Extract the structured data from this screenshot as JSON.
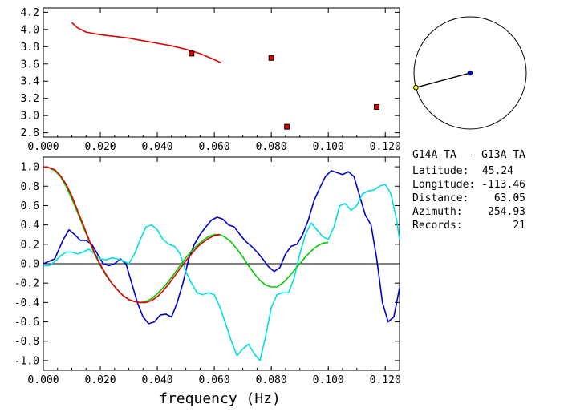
{
  "chart_data": [
    {
      "type": "scatter",
      "xlim": [
        0.0,
        0.125
      ],
      "ylim": [
        2.75,
        4.25
      ],
      "xticks": [
        0.0,
        0.02,
        0.04,
        0.06,
        0.08,
        0.1,
        0.12
      ],
      "xtick_labels": [
        "0.000",
        "0.020",
        "0.040",
        "0.060",
        "0.080",
        "0.100",
        "0.120"
      ],
      "yticks": [
        2.8,
        3.0,
        3.2,
        3.4,
        3.6,
        3.8,
        4.0,
        4.2
      ],
      "ytick_labels": [
        "2.8",
        "3.0",
        "3.2",
        "3.4",
        "3.6",
        "3.8",
        "4.0",
        "4.2"
      ],
      "series": [
        {
          "kind": "line",
          "color": "#e00000",
          "x": [
            0.01,
            0.012,
            0.015,
            0.02,
            0.025,
            0.03,
            0.035,
            0.04,
            0.045,
            0.05,
            0.055,
            0.06,
            0.0625
          ],
          "y": [
            4.08,
            4.02,
            3.97,
            3.94,
            3.92,
            3.9,
            3.87,
            3.84,
            3.81,
            3.77,
            3.72,
            3.65,
            3.61
          ]
        },
        {
          "kind": "points",
          "color": "#e00000",
          "x": [
            0.052,
            0.08,
            0.0855,
            0.117
          ],
          "y": [
            3.72,
            3.67,
            2.87,
            3.1
          ]
        }
      ]
    },
    {
      "type": "line",
      "xlabel": "frequency (Hz)",
      "xlim": [
        0.0,
        0.125
      ],
      "ylim": [
        -1.1,
        1.1
      ],
      "xticks": [
        0.0,
        0.02,
        0.04,
        0.06,
        0.08,
        0.1,
        0.12
      ],
      "xtick_labels": [
        "0.000",
        "0.020",
        "0.040",
        "0.060",
        "0.080",
        "0.100",
        "0.120"
      ],
      "yticks": [
        -1.0,
        -0.8,
        -0.6,
        -0.4,
        -0.2,
        0.0,
        0.2,
        0.4,
        0.6,
        0.8,
        1.0
      ],
      "ytick_labels": [
        "-1.0",
        "-0.8",
        "-0.6",
        "-0.4",
        "-0.2",
        "0.0",
        "0.2",
        "0.4",
        "0.6",
        "0.8",
        "1.0"
      ],
      "zero_line": true,
      "series": [
        {
          "color": "#0000cc",
          "x": [
            0.0,
            0.004,
            0.007,
            0.009,
            0.011,
            0.013,
            0.015,
            0.017,
            0.019,
            0.021,
            0.023,
            0.025,
            0.027,
            0.029,
            0.031,
            0.033,
            0.035,
            0.037,
            0.039,
            0.041,
            0.043,
            0.045,
            0.047,
            0.049,
            0.051,
            0.053,
            0.055,
            0.057,
            0.059,
            0.061,
            0.063,
            0.065,
            0.067,
            0.069,
            0.071,
            0.073,
            0.075,
            0.077,
            0.079,
            0.081,
            0.083,
            0.085,
            0.087,
            0.089,
            0.091,
            0.093,
            0.095,
            0.097,
            0.099,
            0.101,
            0.103,
            0.105,
            0.107,
            0.109,
            0.111,
            0.113,
            0.115,
            0.117,
            0.119,
            0.121,
            0.123,
            0.125
          ],
          "y": [
            0.0,
            0.05,
            0.25,
            0.35,
            0.3,
            0.24,
            0.24,
            0.2,
            0.1,
            0.0,
            -0.02,
            0.0,
            0.05,
            0.0,
            -0.2,
            -0.4,
            -0.55,
            -0.62,
            -0.6,
            -0.53,
            -0.52,
            -0.55,
            -0.4,
            -0.2,
            0.05,
            0.2,
            0.3,
            0.38,
            0.45,
            0.48,
            0.46,
            0.4,
            0.38,
            0.3,
            0.23,
            0.18,
            0.12,
            0.05,
            -0.03,
            -0.08,
            -0.04,
            0.1,
            0.18,
            0.2,
            0.3,
            0.45,
            0.65,
            0.78,
            0.9,
            0.96,
            0.94,
            0.92,
            0.95,
            0.9,
            0.7,
            0.5,
            0.4,
            0.05,
            -0.4,
            -0.6,
            -0.55,
            -0.25
          ]
        },
        {
          "color": "#00e0e0",
          "x": [
            0.0,
            0.002,
            0.004,
            0.006,
            0.008,
            0.01,
            0.012,
            0.014,
            0.016,
            0.018,
            0.02,
            0.022,
            0.024,
            0.026,
            0.028,
            0.03,
            0.032,
            0.034,
            0.036,
            0.038,
            0.04,
            0.042,
            0.044,
            0.046,
            0.048,
            0.05,
            0.052,
            0.054,
            0.056,
            0.058,
            0.06,
            0.062,
            0.064,
            0.066,
            0.068,
            0.07,
            0.072,
            0.074,
            0.076,
            0.078,
            0.08,
            0.082,
            0.084,
            0.086,
            0.088,
            0.09,
            0.092,
            0.094,
            0.096,
            0.098,
            0.1,
            0.102,
            0.104,
            0.106,
            0.108,
            0.11,
            0.112,
            0.114,
            0.116,
            0.118,
            0.12,
            0.122,
            0.124,
            0.125
          ],
          "y": [
            -0.02,
            -0.02,
            0.02,
            0.08,
            0.12,
            0.12,
            0.1,
            0.12,
            0.15,
            0.1,
            0.05,
            0.04,
            0.06,
            0.05,
            0.03,
            0.0,
            0.1,
            0.25,
            0.38,
            0.4,
            0.35,
            0.25,
            0.2,
            0.18,
            0.1,
            -0.08,
            -0.2,
            -0.3,
            -0.32,
            -0.3,
            -0.32,
            -0.45,
            -0.62,
            -0.8,
            -0.95,
            -0.88,
            -0.83,
            -0.93,
            -1.0,
            -0.75,
            -0.45,
            -0.32,
            -0.3,
            -0.3,
            -0.15,
            0.1,
            0.3,
            0.42,
            0.35,
            0.28,
            0.25,
            0.38,
            0.6,
            0.62,
            0.55,
            0.6,
            0.72,
            0.75,
            0.76,
            0.8,
            0.82,
            0.72,
            0.45,
            0.25
          ]
        },
        {
          "color": "#00cc00",
          "x": [
            0.0,
            0.002,
            0.004,
            0.006,
            0.008,
            0.01,
            0.012,
            0.014,
            0.016,
            0.018,
            0.02,
            0.022,
            0.024,
            0.026,
            0.028,
            0.03,
            0.032,
            0.034,
            0.036,
            0.038,
            0.04,
            0.042,
            0.044,
            0.046,
            0.048,
            0.05,
            0.052,
            0.054,
            0.056,
            0.058,
            0.06,
            0.062,
            0.064,
            0.066,
            0.068,
            0.07,
            0.072,
            0.074,
            0.076,
            0.078,
            0.08,
            0.082,
            0.084,
            0.086,
            0.088,
            0.09,
            0.092,
            0.094,
            0.096,
            0.098,
            0.1
          ],
          "y": [
            1.0,
            0.99,
            0.96,
            0.9,
            0.8,
            0.67,
            0.53,
            0.38,
            0.24,
            0.1,
            -0.02,
            -0.12,
            -0.2,
            -0.27,
            -0.33,
            -0.37,
            -0.39,
            -0.4,
            -0.39,
            -0.36,
            -0.31,
            -0.25,
            -0.18,
            -0.1,
            -0.02,
            0.06,
            0.13,
            0.19,
            0.24,
            0.28,
            0.3,
            0.3,
            0.27,
            0.22,
            0.15,
            0.07,
            -0.02,
            -0.1,
            -0.17,
            -0.22,
            -0.24,
            -0.24,
            -0.2,
            -0.14,
            -0.07,
            0.0,
            0.07,
            0.13,
            0.18,
            0.21,
            0.22
          ]
        },
        {
          "color": "#e00000",
          "x": [
            0.0,
            0.002,
            0.004,
            0.006,
            0.008,
            0.01,
            0.012,
            0.014,
            0.016,
            0.018,
            0.02,
            0.022,
            0.024,
            0.026,
            0.028,
            0.03,
            0.032,
            0.034,
            0.036,
            0.038,
            0.04,
            0.042,
            0.044,
            0.046,
            0.048,
            0.05,
            0.052,
            0.054,
            0.056,
            0.058,
            0.06,
            0.062
          ],
          "y": [
            1.0,
            0.99,
            0.97,
            0.91,
            0.82,
            0.7,
            0.55,
            0.4,
            0.25,
            0.11,
            -0.01,
            -0.11,
            -0.2,
            -0.27,
            -0.33,
            -0.37,
            -0.39,
            -0.4,
            -0.4,
            -0.38,
            -0.34,
            -0.28,
            -0.21,
            -0.13,
            -0.05,
            0.03,
            0.1,
            0.17,
            0.22,
            0.26,
            0.29,
            0.3
          ]
        }
      ]
    }
  ],
  "azimuth_plot": {
    "azimuth_deg": 254.93,
    "relative_length": 1.0,
    "line_color": "#000000",
    "center_color": "#0000cc",
    "end_color": "#ffff00"
  },
  "info": {
    "station_pair": "G14A-TA  - G13A-TA",
    "latitude": {
      "label": "Latitude:",
      "value": "45.24"
    },
    "longitude": {
      "label": "Longitude:",
      "value": "-113.46"
    },
    "distance": {
      "label": "Distance:",
      "value": "63.05"
    },
    "azimuth": {
      "label": "Azimuth:",
      "value": "254.93"
    },
    "records": {
      "label": "Records:",
      "value": "21"
    }
  }
}
